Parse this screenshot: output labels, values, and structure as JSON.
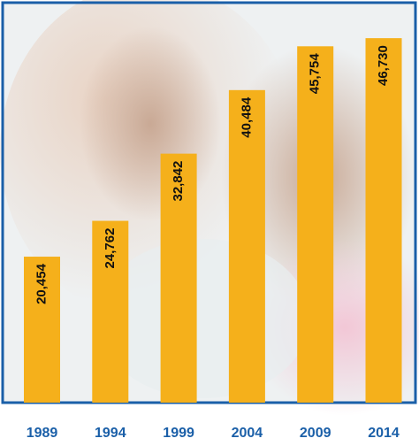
{
  "chart_data": {
    "type": "bar",
    "categories": [
      "1989",
      "1994",
      "1999",
      "2004",
      "2009",
      "2014"
    ],
    "values": [
      20454,
      24762,
      32842,
      40484,
      45754,
      46730
    ],
    "value_labels": [
      "20,454",
      "24,762",
      "32,842",
      "40,484",
      "45,754",
      "46,730"
    ],
    "color": "#f5b01b",
    "ylim": [
      2900,
      51000
    ]
  }
}
